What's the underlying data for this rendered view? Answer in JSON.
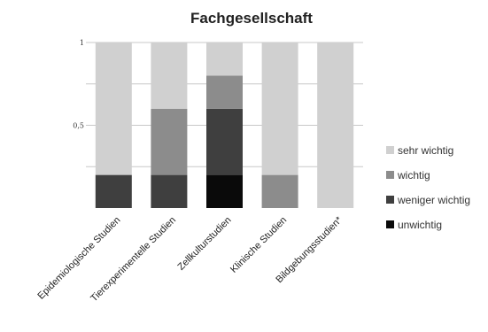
{
  "chart_data": {
    "type": "bar",
    "stacked": true,
    "title": "Fachgesellschaft",
    "categories": [
      "Epidemiologische Studien",
      "Tierexperimentelle Studien",
      "Zellkulturstudien",
      "Klinische Studien",
      "Bildgebungsstudien*"
    ],
    "series": [
      {
        "name": "unwichtig",
        "values": [
          0,
          0,
          0.2,
          0,
          0
        ],
        "color": "#0a0a0a"
      },
      {
        "name": "weniger wichtig",
        "values": [
          0.2,
          0.2,
          0.4,
          0,
          0
        ],
        "color": "#3f3f3f"
      },
      {
        "name": "wichtig",
        "values": [
          0,
          0.4,
          0.2,
          0.2,
          0
        ],
        "color": "#8c8c8c"
      },
      {
        "name": "sehr wichtig",
        "values": [
          0.8,
          0.4,
          0.2,
          0.8,
          1.0
        ],
        "color": "#d0d0d0"
      }
    ],
    "ylim": [
      0,
      1
    ],
    "yticks": [
      {
        "value": 0.5,
        "label": "0,5"
      },
      {
        "value": 1,
        "label": "1"
      }
    ],
    "gridlines": [
      0.25,
      0.5,
      0.75,
      1
    ],
    "legend_position": "right",
    "legend_order": [
      "sehr wichtig",
      "wichtig",
      "weniger wichtig",
      "unwichtig"
    ]
  }
}
